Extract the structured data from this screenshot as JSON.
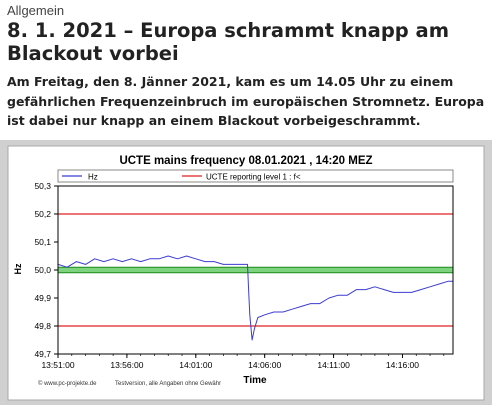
{
  "article": {
    "category": "Allgemein",
    "title": "8. 1. 2021 – Europa schrammt knapp am Blackout vorbei",
    "lead": "Am Freitag, den 8. Jänner 2021, kam es um 14.05 Uhr zu einem gefährlichen Frequenzeinbruch im europäischen Stromnetz. Europa ist dabei nur knapp an einem Blackout vorbeigeschrammt."
  },
  "colors": {
    "series": "#3c3cd2",
    "level": "#e02020",
    "band_fill": "#7ed37e",
    "band_edge": "#1a8a1a",
    "panel": "#ffffff",
    "figure_bg": "#d0d0d0"
  },
  "chart_data": {
    "type": "line",
    "title": "UCTE mains frequency  08.01.2021 , 14:20 MEZ",
    "xlabel": "Time",
    "ylabel": "Hz",
    "x_unit": "time of day (HH:MM:SS)",
    "x_range": [
      "13:51:00",
      "14:19:40"
    ],
    "ylim": [
      49.7,
      50.3
    ],
    "grid": false,
    "y_ticks": [
      "50,3",
      "50,2",
      "50,1",
      "50,0",
      "49,9",
      "49,8",
      "49,7"
    ],
    "x_ticks": [
      "13:51:00",
      "13:56:00",
      "14:01:00",
      "14:06:00",
      "14:11:00",
      "14:16:00"
    ],
    "legend": {
      "placement": "top",
      "entries": [
        "Hz",
        "UCTE reporting level 1 : f<"
      ]
    },
    "reporting_levels": [
      50.2,
      49.8
    ],
    "deadband": [
      49.99,
      50.01
    ],
    "footer_left": "© www.pc-projekte.de",
    "footer_right": "Testversion, alle Angaben ohne Gewähr",
    "series": [
      {
        "name": "Hz",
        "points": [
          [
            "13:51:00",
            50.02
          ],
          [
            "13:51:40",
            50.01
          ],
          [
            "13:52:20",
            50.03
          ],
          [
            "13:53:00",
            50.02
          ],
          [
            "13:53:40",
            50.04
          ],
          [
            "13:54:20",
            50.03
          ],
          [
            "13:55:00",
            50.04
          ],
          [
            "13:55:40",
            50.03
          ],
          [
            "13:56:20",
            50.04
          ],
          [
            "13:57:00",
            50.03
          ],
          [
            "13:57:40",
            50.04
          ],
          [
            "13:58:20",
            50.04
          ],
          [
            "13:59:00",
            50.05
          ],
          [
            "13:59:40",
            50.04
          ],
          [
            "14:00:20",
            50.05
          ],
          [
            "14:01:00",
            50.04
          ],
          [
            "14:01:40",
            50.03
          ],
          [
            "14:02:20",
            50.03
          ],
          [
            "14:03:00",
            50.02
          ],
          [
            "14:03:40",
            50.02
          ],
          [
            "14:04:20",
            50.02
          ],
          [
            "14:04:45",
            50.02
          ],
          [
            "14:04:50",
            49.93
          ],
          [
            "14:04:55",
            49.84
          ],
          [
            "14:05:05",
            49.75
          ],
          [
            "14:05:15",
            49.79
          ],
          [
            "14:05:30",
            49.83
          ],
          [
            "14:06:00",
            49.84
          ],
          [
            "14:06:40",
            49.85
          ],
          [
            "14:07:20",
            49.85
          ],
          [
            "14:08:00",
            49.86
          ],
          [
            "14:08:40",
            49.87
          ],
          [
            "14:09:20",
            49.88
          ],
          [
            "14:10:00",
            49.88
          ],
          [
            "14:10:40",
            49.9
          ],
          [
            "14:11:20",
            49.91
          ],
          [
            "14:12:00",
            49.91
          ],
          [
            "14:12:40",
            49.93
          ],
          [
            "14:13:20",
            49.93
          ],
          [
            "14:14:00",
            49.94
          ],
          [
            "14:14:40",
            49.93
          ],
          [
            "14:15:20",
            49.92
          ],
          [
            "14:16:00",
            49.92
          ],
          [
            "14:16:40",
            49.92
          ],
          [
            "14:17:20",
            49.93
          ],
          [
            "14:18:00",
            49.94
          ],
          [
            "14:18:40",
            49.95
          ],
          [
            "14:19:20",
            49.96
          ],
          [
            "14:19:40",
            49.96
          ]
        ]
      }
    ]
  }
}
